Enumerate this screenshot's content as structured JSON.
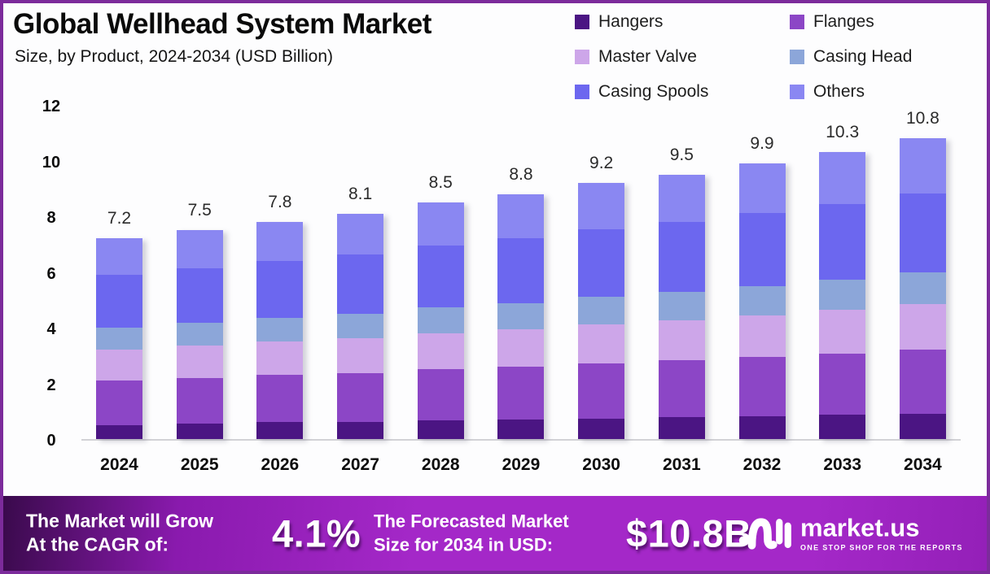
{
  "colors": {
    "frame_border": "#7C2B9B",
    "background": "#FDFDFE",
    "axis_baseline": "#D2D2D6",
    "footer_gradient_start": "#3A0A4C",
    "footer_gradient_mid": "#A428C8",
    "footer_gradient_end": "#9420B8"
  },
  "header": {
    "title": "Global Wellhead System Market",
    "subtitle": "Size, by Product, 2024-2034 (USD Billion)"
  },
  "legend": {
    "position": "top-right",
    "items": [
      {
        "label": "Hangers",
        "color": "#4B1583"
      },
      {
        "label": "Flanges",
        "color": "#8C46C6"
      },
      {
        "label": "Master Valve",
        "color": "#CDA6E9"
      },
      {
        "label": "Casing Head",
        "color": "#8CA6D9"
      },
      {
        "label": "Casing Spools",
        "color": "#6C67EF"
      },
      {
        "label": "Others",
        "color": "#8A87F2"
      }
    ]
  },
  "chart_data": {
    "type": "bar",
    "stacked": true,
    "title": "Global Wellhead System Market Size, by Product, 2024-2034 (USD Billion)",
    "xlabel": "",
    "ylabel": "USD Billion",
    "ylim": [
      0,
      12
    ],
    "yticks": [
      0,
      2,
      4,
      6,
      8,
      10,
      12
    ],
    "grid": false,
    "legend_position": "top-right",
    "categories": [
      "2024",
      "2025",
      "2026",
      "2027",
      "2028",
      "2029",
      "2030",
      "2031",
      "2032",
      "2033",
      "2034"
    ],
    "totals": [
      7.2,
      7.5,
      7.8,
      8.1,
      8.5,
      8.8,
      9.2,
      9.5,
      9.9,
      10.3,
      10.8
    ],
    "total_labels": [
      "7.2",
      "7.5",
      "7.8",
      "8.1",
      "8.5",
      "8.8",
      "9.2",
      "9.5",
      "9.9",
      "10.3",
      "10.8"
    ],
    "series": [
      {
        "name": "Hangers",
        "color": "#4B1583",
        "values": [
          0.5,
          0.55,
          0.6,
          0.62,
          0.66,
          0.7,
          0.74,
          0.78,
          0.82,
          0.87,
          0.92
        ]
      },
      {
        "name": "Flanges",
        "color": "#8C46C6",
        "values": [
          1.6,
          1.65,
          1.7,
          1.76,
          1.84,
          1.9,
          1.98,
          2.04,
          2.12,
          2.2,
          2.3
        ]
      },
      {
        "name": "Master Valve",
        "color": "#CDA6E9",
        "values": [
          1.1,
          1.15,
          1.2,
          1.24,
          1.3,
          1.34,
          1.4,
          1.44,
          1.5,
          1.56,
          1.62
        ]
      },
      {
        "name": "Casing Head",
        "color": "#8CA6D9",
        "values": [
          0.8,
          0.82,
          0.85,
          0.88,
          0.92,
          0.95,
          0.99,
          1.02,
          1.06,
          1.1,
          1.15
        ]
      },
      {
        "name": "Casing Spools",
        "color": "#6C67EF",
        "values": [
          1.9,
          1.97,
          2.05,
          2.13,
          2.24,
          2.32,
          2.43,
          2.51,
          2.62,
          2.72,
          2.84
        ]
      },
      {
        "name": "Others",
        "color": "#8A87F2",
        "values": [
          1.3,
          1.36,
          1.4,
          1.47,
          1.54,
          1.59,
          1.66,
          1.71,
          1.78,
          1.85,
          1.97
        ]
      }
    ]
  },
  "footer": {
    "cagr_lines": [
      "The Market will Grow",
      "At the CAGR of:"
    ],
    "cagr_value": "4.1%",
    "forecast_lines": [
      "The Forecasted Market",
      "Size for 2034 in USD:"
    ],
    "forecast_value": "$10.8B",
    "logo_icon": "market-us-squiggle-icon",
    "logo_text": "market.us",
    "logo_tagline": "ONE STOP SHOP FOR THE REPORTS"
  }
}
